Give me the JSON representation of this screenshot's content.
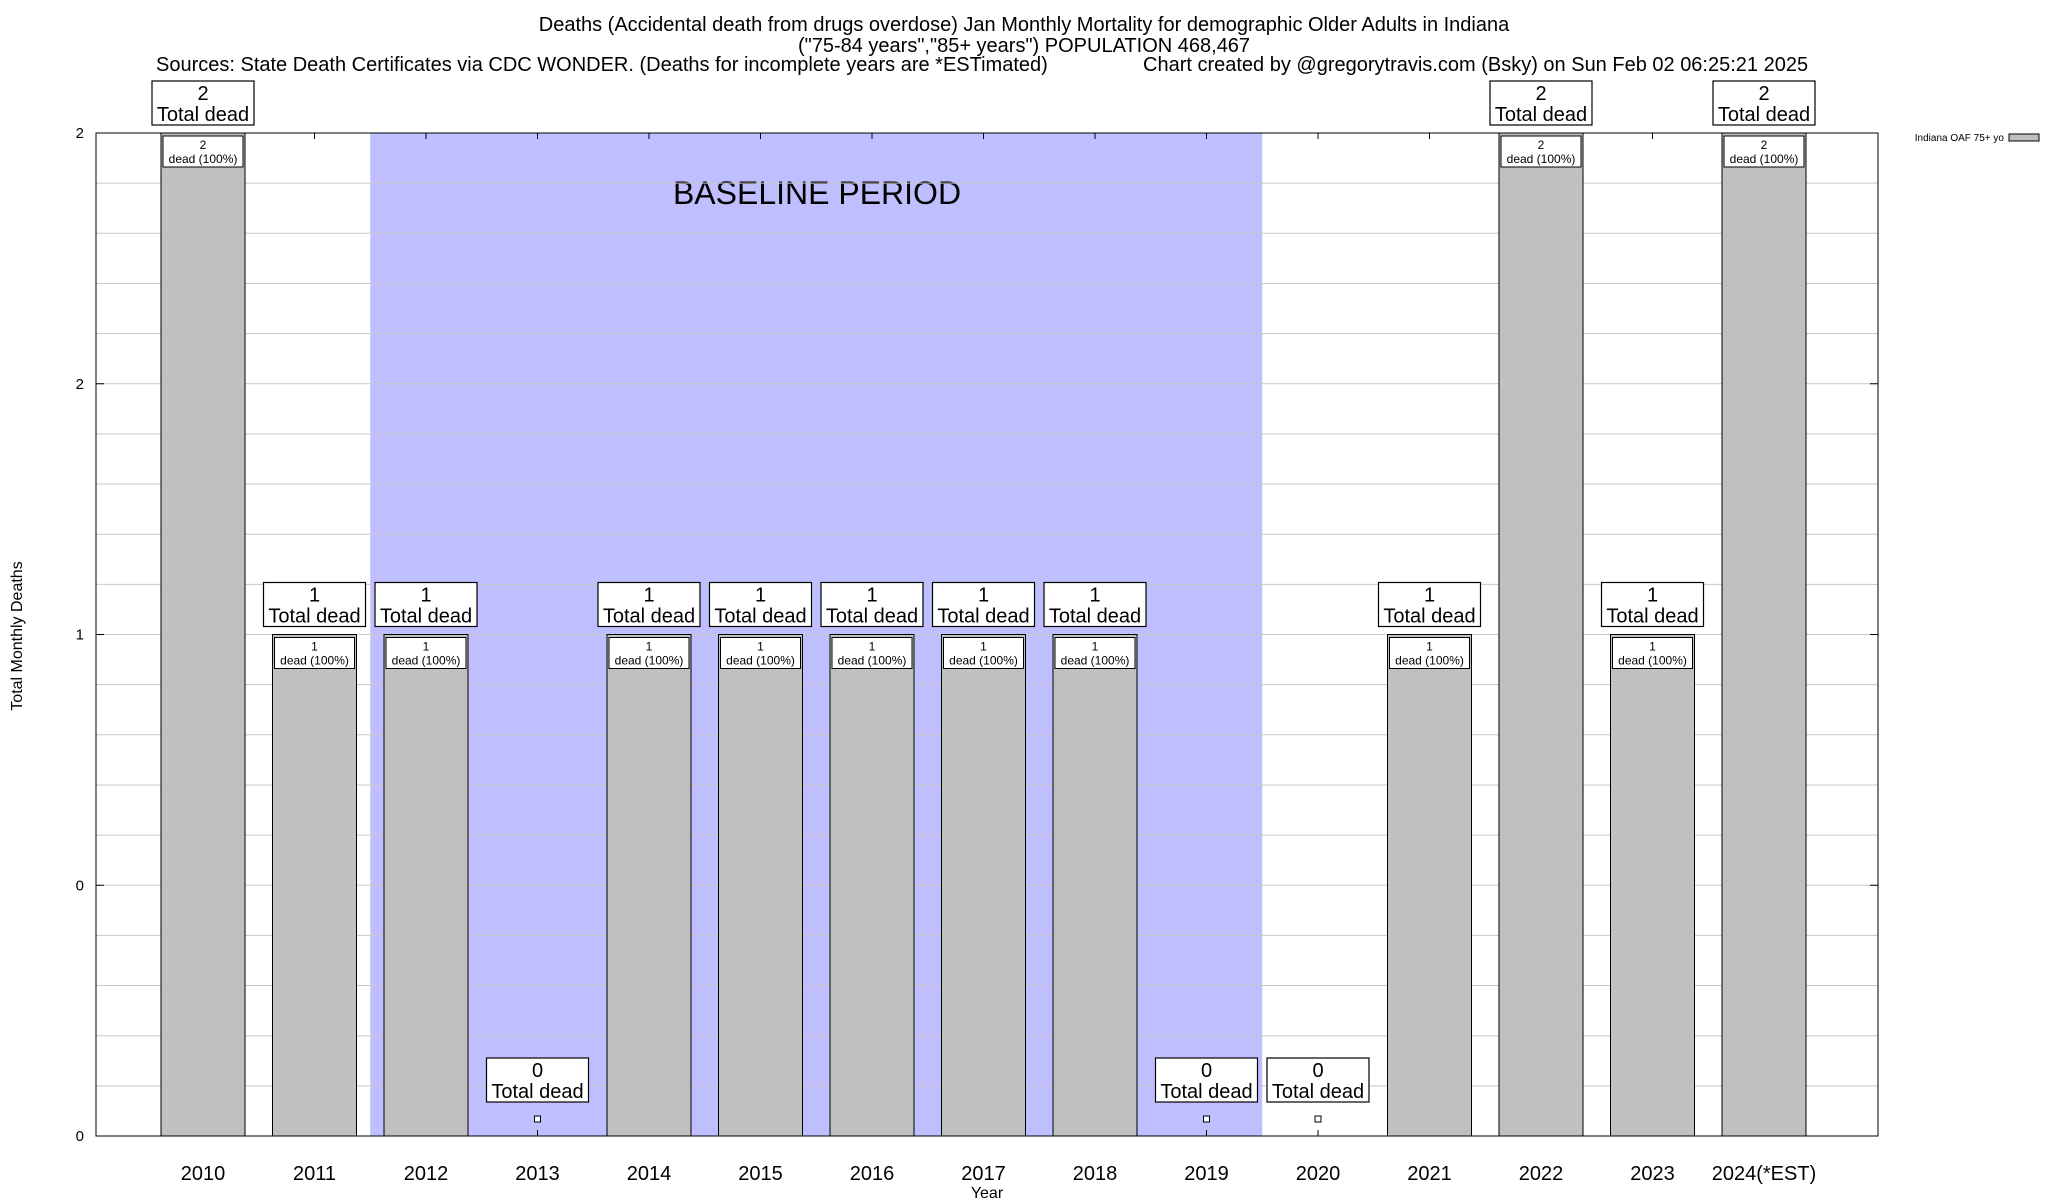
{
  "chart_data": {
    "type": "bar",
    "title": "Deaths (Accidental death from drugs overdose) Jan Monthly Mortality for demographic Older Adults in Indiana",
    "subtitle": "(\"75-84 years\",\"85+ years\") POPULATION 468,467",
    "sources": "Sources: State Death Certificates via CDC WONDER. (Deaths for incomplete years are *ESTimated)",
    "credit": "Chart created by @gregorytravis.com (Bsky) on Sun Feb 02 06:25:21 2025",
    "xlabel": "Year",
    "ylabel": "Total Monthly Deaths",
    "categories": [
      "2010",
      "2011",
      "2012",
      "2013",
      "2014",
      "2015",
      "2016",
      "2017",
      "2018",
      "2019",
      "2020",
      "2021",
      "2022",
      "2023",
      "2024(*EST)"
    ],
    "series": [
      {
        "name": "Indiana OAF 75+ yo",
        "color": "#c0c0c0",
        "values": [
          2,
          1,
          1,
          0,
          1,
          1,
          1,
          1,
          1,
          0,
          0,
          1,
          2,
          1,
          2
        ]
      }
    ],
    "total_label": "Total dead",
    "bar_label_suffix": "dead (100%)",
    "ylim": [
      0,
      2
    ],
    "y_ticks": [
      {
        "value": 0,
        "label": "0"
      },
      {
        "value": 0.5,
        "label": "0"
      },
      {
        "value": 1,
        "label": "1"
      },
      {
        "value": 1.5,
        "label": "2"
      },
      {
        "value": 2,
        "label": "2"
      }
    ],
    "minor_grid_step": 0.1,
    "grid": true,
    "legend_position": "top-right",
    "annotation": {
      "text": "BASELINE PERIOD",
      "from_category": "2012",
      "to_category": "2019",
      "color": "#bfbfff"
    }
  }
}
